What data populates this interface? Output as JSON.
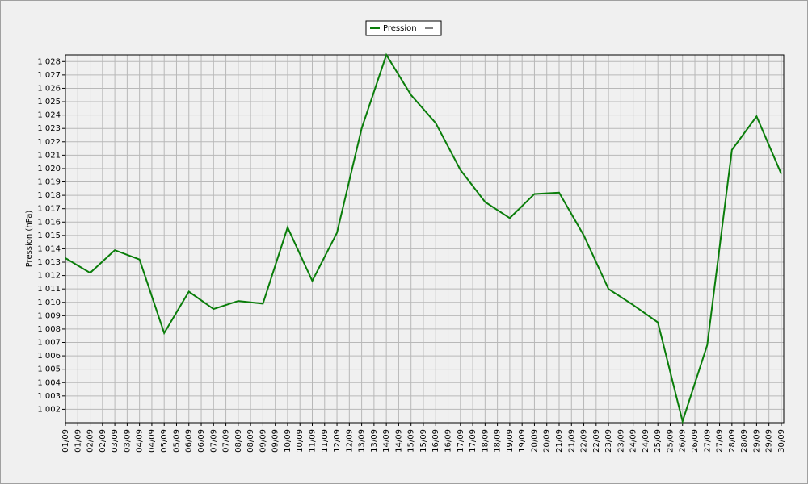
{
  "chart_data": {
    "type": "line",
    "y_label": "Pression (hPa)",
    "series": [
      {
        "name": "Pression",
        "color": "#0a7d0a",
        "x": [
          1,
          2,
          3,
          4,
          5,
          6,
          7,
          8,
          9,
          10,
          11,
          12,
          13,
          14,
          15,
          16,
          17,
          18,
          19,
          20,
          21,
          22,
          23,
          24,
          25,
          26,
          27,
          28,
          29,
          30
        ],
        "values": [
          1013.3,
          1012.2,
          1013.9,
          1013.2,
          1007.7,
          1010.8,
          1009.5,
          1010.1,
          1009.9,
          1015.6,
          1011.6,
          1015.2,
          1023.0,
          1028.5,
          1025.5,
          1023.4,
          1019.9,
          1017.5,
          1016.3,
          1018.1,
          1018.2,
          1015.0,
          1011.0,
          1009.8,
          1008.5,
          1001.1,
          1006.8,
          1021.4,
          1023.9,
          1019.6
        ]
      }
    ],
    "xlim": [
      1,
      30.1
    ],
    "xticks": [
      {
        "value": 1,
        "label": "01/09"
      },
      {
        "value": 1.5,
        "label": "01/09"
      },
      {
        "value": 2,
        "label": "02/09"
      },
      {
        "value": 2.5,
        "label": "02/09"
      },
      {
        "value": 3,
        "label": "03/09"
      },
      {
        "value": 3.5,
        "label": "03/09"
      },
      {
        "value": 4,
        "label": "04/09"
      },
      {
        "value": 4.5,
        "label": "04/09"
      },
      {
        "value": 5,
        "label": "05/09"
      },
      {
        "value": 5.5,
        "label": "05/09"
      },
      {
        "value": 6,
        "label": "06/09"
      },
      {
        "value": 6.5,
        "label": "06/09"
      },
      {
        "value": 7,
        "label": "07/09"
      },
      {
        "value": 7.5,
        "label": "07/09"
      },
      {
        "value": 8,
        "label": "08/09"
      },
      {
        "value": 8.5,
        "label": "08/09"
      },
      {
        "value": 9,
        "label": "09/09"
      },
      {
        "value": 9.5,
        "label": "09/09"
      },
      {
        "value": 10,
        "label": "10/09"
      },
      {
        "value": 10.5,
        "label": "10/09"
      },
      {
        "value": 11,
        "label": "11/09"
      },
      {
        "value": 11.5,
        "label": "11/09"
      },
      {
        "value": 12,
        "label": "12/09"
      },
      {
        "value": 12.5,
        "label": "12/09"
      },
      {
        "value": 13,
        "label": "13/09"
      },
      {
        "value": 13.5,
        "label": "13/09"
      },
      {
        "value": 14,
        "label": "14/09"
      },
      {
        "value": 14.5,
        "label": "14/09"
      },
      {
        "value": 15,
        "label": "15/09"
      },
      {
        "value": 15.5,
        "label": "15/09"
      },
      {
        "value": 16,
        "label": "16/09"
      },
      {
        "value": 16.5,
        "label": "16/09"
      },
      {
        "value": 17,
        "label": "17/09"
      },
      {
        "value": 17.5,
        "label": "17/09"
      },
      {
        "value": 18,
        "label": "18/09"
      },
      {
        "value": 18.5,
        "label": "18/09"
      },
      {
        "value": 19,
        "label": "19/09"
      },
      {
        "value": 19.5,
        "label": "19/09"
      },
      {
        "value": 20,
        "label": "20/09"
      },
      {
        "value": 20.5,
        "label": "20/09"
      },
      {
        "value": 21,
        "label": "21/09"
      },
      {
        "value": 21.5,
        "label": "21/09"
      },
      {
        "value": 22,
        "label": "22/09"
      },
      {
        "value": 22.5,
        "label": "22/09"
      },
      {
        "value": 23,
        "label": "23/09"
      },
      {
        "value": 23.5,
        "label": "23/09"
      },
      {
        "value": 24,
        "label": "24/09"
      },
      {
        "value": 24.5,
        "label": "24/09"
      },
      {
        "value": 25,
        "label": "25/09"
      },
      {
        "value": 25.5,
        "label": "25/09"
      },
      {
        "value": 26,
        "label": "26/09"
      },
      {
        "value": 26.5,
        "label": "26/09"
      },
      {
        "value": 27,
        "label": "27/09"
      },
      {
        "value": 27.5,
        "label": "27/09"
      },
      {
        "value": 28,
        "label": "28/09"
      },
      {
        "value": 28.5,
        "label": "28/09"
      },
      {
        "value": 29,
        "label": "29/09"
      },
      {
        "value": 29.5,
        "label": "29/09"
      },
      {
        "value": 30,
        "label": "30/09"
      }
    ],
    "ylim": [
      1001,
      1028.5
    ],
    "yticks": [
      {
        "value": 1002,
        "label": "1 002"
      },
      {
        "value": 1003,
        "label": "1 003"
      },
      {
        "value": 1004,
        "label": "1 004"
      },
      {
        "value": 1005,
        "label": "1 005"
      },
      {
        "value": 1006,
        "label": "1 006"
      },
      {
        "value": 1007,
        "label": "1 007"
      },
      {
        "value": 1008,
        "label": "1 008"
      },
      {
        "value": 1009,
        "label": "1 009"
      },
      {
        "value": 1010,
        "label": "1 010"
      },
      {
        "value": 1011,
        "label": "1 011"
      },
      {
        "value": 1012,
        "label": "1 012"
      },
      {
        "value": 1013,
        "label": "1 013"
      },
      {
        "value": 1014,
        "label": "1 014"
      },
      {
        "value": 1015,
        "label": "1 015"
      },
      {
        "value": 1016,
        "label": "1 016"
      },
      {
        "value": 1017,
        "label": "1 017"
      },
      {
        "value": 1018,
        "label": "1 018"
      },
      {
        "value": 1019,
        "label": "1 019"
      },
      {
        "value": 1020,
        "label": "1 020"
      },
      {
        "value": 1021,
        "label": "1 021"
      },
      {
        "value": 1022,
        "label": "1 022"
      },
      {
        "value": 1023,
        "label": "1 023"
      },
      {
        "value": 1024,
        "label": "1 024"
      },
      {
        "value": 1025,
        "label": "1 025"
      },
      {
        "value": 1026,
        "label": "1 026"
      },
      {
        "value": 1027,
        "label": "1 027"
      },
      {
        "value": 1028,
        "label": "1 028"
      }
    ],
    "grid": true
  }
}
